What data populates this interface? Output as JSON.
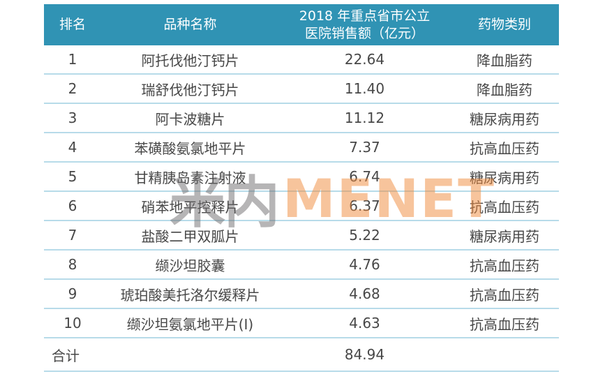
{
  "colors": {
    "header_bg": "#3093b4",
    "header_text": "#ffffff",
    "row_border": "#b7dbe9",
    "body_text": "#474747",
    "watermark_gray": "#6f6d6f",
    "watermark_orange": "#f08a3c"
  },
  "watermark": {
    "cn": "米内",
    "en": "MENET"
  },
  "table": {
    "headers": {
      "rank": "排名",
      "name": "品种名称",
      "sales_line1": "2018 年重点省市公立",
      "sales_line2": "医院销售额（亿元）",
      "category": "药物类别"
    },
    "rows": [
      {
        "rank": "1",
        "name": "阿托伐他汀钙片",
        "sales": "22.64",
        "category": "降血脂药"
      },
      {
        "rank": "2",
        "name": "瑞舒伐他汀钙片",
        "sales": "11.40",
        "category": "降血脂药"
      },
      {
        "rank": "3",
        "name": "阿卡波糖片",
        "sales": "11.12",
        "category": "糖尿病用药"
      },
      {
        "rank": "4",
        "name": "苯磺酸氨氯地平片",
        "sales": "7.37",
        "category": "抗高血压药"
      },
      {
        "rank": "5",
        "name": "甘精胰岛素注射液",
        "sales": "6.74",
        "category": "糖尿病用药"
      },
      {
        "rank": "6",
        "name": "硝苯地平控释片",
        "sales": "6.37",
        "category": "抗高血压药"
      },
      {
        "rank": "7",
        "name": "盐酸二甲双胍片",
        "sales": "5.22",
        "category": "糖尿病用药"
      },
      {
        "rank": "8",
        "name": "缬沙坦胶囊",
        "sales": "4.76",
        "category": "抗高血压药"
      },
      {
        "rank": "9",
        "name": "琥珀酸美托洛尔缓释片",
        "sales": "4.68",
        "category": "抗高血压药"
      },
      {
        "rank": "10",
        "name": "缬沙坦氨氯地平片(Ⅰ)",
        "sales": "4.63",
        "category": "抗高血压药"
      }
    ],
    "total": {
      "label": "合计",
      "sales": "84.94"
    }
  },
  "chart_data": {
    "type": "table",
    "title": "2018 年重点省市公立医院销售额（亿元）",
    "columns": [
      "排名",
      "品种名称",
      "2018 年重点省市公立医院销售额（亿元）",
      "药物类别"
    ],
    "rows": [
      [
        "1",
        "阿托伐他汀钙片",
        22.64,
        "降血脂药"
      ],
      [
        "2",
        "瑞舒伐他汀钙片",
        11.4,
        "降血脂药"
      ],
      [
        "3",
        "阿卡波糖片",
        11.12,
        "糖尿病用药"
      ],
      [
        "4",
        "苯磺酸氨氯地平片",
        7.37,
        "抗高血压药"
      ],
      [
        "5",
        "甘精胰岛素注射液",
        6.74,
        "糖尿病用药"
      ],
      [
        "6",
        "硝苯地平控释片",
        6.37,
        "抗高血压药"
      ],
      [
        "7",
        "盐酸二甲双胍片",
        5.22,
        "糖尿病用药"
      ],
      [
        "8",
        "缬沙坦胶囊",
        4.76,
        "抗高血压药"
      ],
      [
        "9",
        "琥珀酸美托洛尔缓释片",
        4.68,
        "抗高血压药"
      ],
      [
        "10",
        "缬沙坦氨氯地平片(Ⅰ)",
        4.63,
        "抗高血压药"
      ]
    ],
    "total_row": [
      "合计",
      "",
      84.94,
      ""
    ]
  }
}
